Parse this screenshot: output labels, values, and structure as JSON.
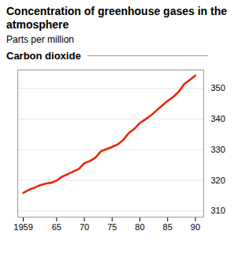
{
  "chart_data": {
    "type": "line",
    "title": "Concentration of greenhouse gases in the atmosphere",
    "subtitle": "Parts per million",
    "x": [
      1959,
      1960,
      1961,
      1962,
      1963,
      1964,
      1965,
      1966,
      1967,
      1968,
      1969,
      1970,
      1971,
      1972,
      1973,
      1974,
      1975,
      1976,
      1977,
      1978,
      1979,
      1980,
      1981,
      1982,
      1983,
      1984,
      1985,
      1986,
      1987,
      1988,
      1989,
      1990
    ],
    "series": [
      {
        "name": "Carbon dioxide",
        "color": "#EE2200",
        "values": [
          315.9,
          316.9,
          317.6,
          318.4,
          318.9,
          319.2,
          319.9,
          321.2,
          322.0,
          322.9,
          323.7,
          325.6,
          326.3,
          327.4,
          329.5,
          330.2,
          330.9,
          331.7,
          333.2,
          335.4,
          336.8,
          338.7,
          339.9,
          341.2,
          342.8,
          344.4,
          345.9,
          347.2,
          348.9,
          351.4,
          352.8,
          354.2
        ]
      }
    ],
    "xlim": [
      1958,
      1991.5
    ],
    "xticks": [
      1959,
      {
        "value": 1965,
        "label": "65"
      },
      {
        "value": 1970,
        "label": "70"
      },
      {
        "value": 1975,
        "label": "75"
      },
      {
        "value": 1980,
        "label": "80"
      },
      {
        "value": 1985,
        "label": "85"
      },
      {
        "value": 1990,
        "label": "90"
      }
    ],
    "ylim": [
      308,
      356
    ],
    "yticks": [
      310,
      320,
      330,
      340,
      350
    ],
    "grid": true
  }
}
